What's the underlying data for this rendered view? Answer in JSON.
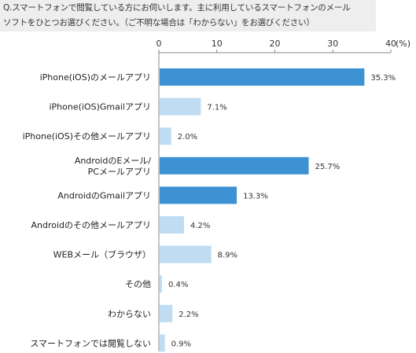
{
  "question": {
    "line1": "Q.スマートフォンで閲覧している方にお伺いします。主に利用しているスマートフォンのメール",
    "line2": "ソフトをひとつお選びください。（ご不明な場合は「わからない」をお選びください）"
  },
  "chart_data": {
    "type": "bar",
    "orientation": "horizontal",
    "categories": [
      [
        "iPhone(iOS)のメールアプリ"
      ],
      [
        "iPhone(iOS)Gmailアプリ"
      ],
      [
        "iPhone(iOS)その他メールアプリ"
      ],
      [
        "AndroidのEメール/",
        "PCメールアプリ"
      ],
      [
        "AndroidのGmailアプリ"
      ],
      [
        "Androidのその他メールアプリ"
      ],
      [
        "WEBメール（ブラウザ）"
      ],
      [
        "その他"
      ],
      [
        "わからない"
      ],
      [
        "スマートフォンでは閲覧しない"
      ]
    ],
    "values": [
      35.3,
      7.1,
      2.0,
      25.7,
      13.3,
      4.2,
      8.9,
      0.4,
      2.2,
      0.9
    ],
    "value_labels": [
      "35.3%",
      "7.1%",
      "2.0%",
      "25.7%",
      "13.3%",
      "4.2%",
      "8.9%",
      "0.4%",
      "2.2%",
      "0.9%"
    ],
    "highlight": [
      true,
      false,
      false,
      true,
      true,
      false,
      false,
      false,
      false,
      false
    ],
    "xlim": [
      0,
      40
    ],
    "xticks": [
      0,
      10,
      20,
      30,
      40
    ],
    "xtick_labels": [
      "0",
      "10",
      "20",
      "30",
      "40"
    ],
    "unit_label": "(%)",
    "colors": {
      "highlight": "#3d92d4",
      "normal": "#bfdcf2"
    },
    "grid": false
  }
}
